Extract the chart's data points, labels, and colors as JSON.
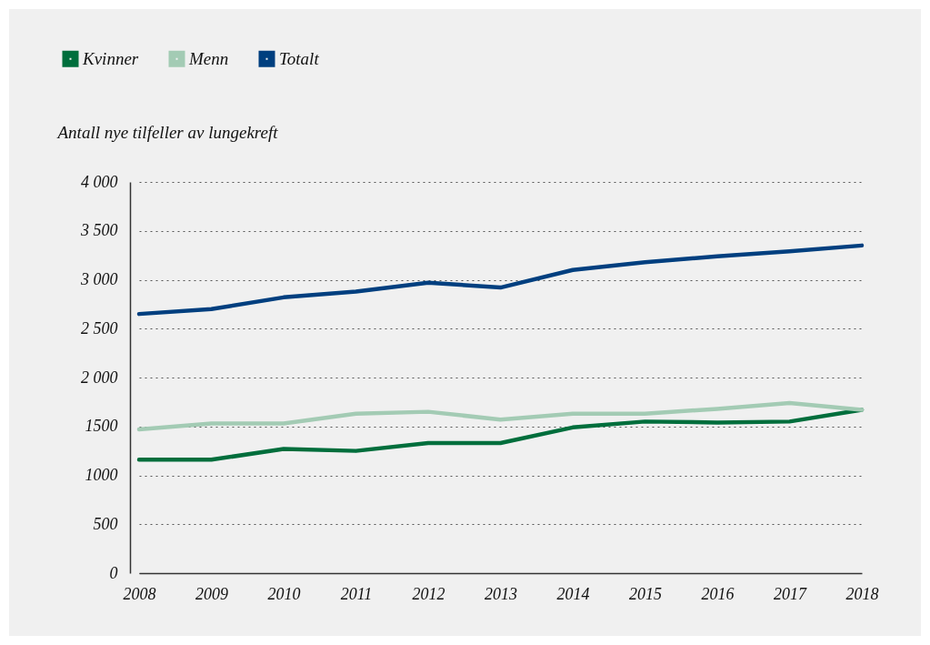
{
  "chart_data": {
    "type": "line",
    "ylabel": "Antall nye tilfeller av lungekreft",
    "categories": [
      "2008",
      "2009",
      "2010",
      "2011",
      "2012",
      "2013",
      "2014",
      "2015",
      "2016",
      "2017",
      "2018"
    ],
    "series": [
      {
        "name": "Kvinner",
        "color": "#006e3c",
        "values": [
          1160,
          1160,
          1270,
          1250,
          1330,
          1330,
          1490,
          1550,
          1540,
          1550,
          1670
        ]
      },
      {
        "name": "Menn",
        "color": "#a3cbb4",
        "values": [
          1470,
          1530,
          1530,
          1630,
          1650,
          1570,
          1630,
          1630,
          1680,
          1740,
          1670
        ]
      },
      {
        "name": "Totalt",
        "color": "#003f7f",
        "values": [
          2650,
          2700,
          2820,
          2880,
          2970,
          2920,
          3100,
          3180,
          3240,
          3290,
          3350
        ]
      }
    ],
    "ylim": [
      0,
      4000
    ],
    "yticks": [
      0,
      500,
      1000,
      1500,
      {
        "value": 2000,
        "label": "2 000"
      },
      {
        "value": 2500,
        "label": "2 500"
      },
      {
        "value": 3000,
        "label": "3 000"
      },
      {
        "value": 3500,
        "label": "3 500"
      },
      {
        "value": 4000,
        "label": "4 000"
      }
    ],
    "grid": "y",
    "legend": "top left",
    "marker": "none",
    "line_style": "solid"
  }
}
